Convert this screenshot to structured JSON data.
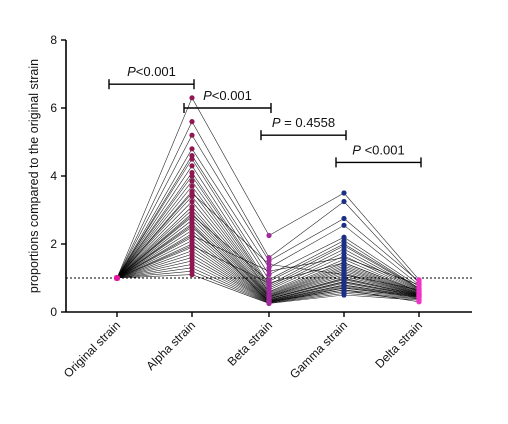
{
  "chart_data": {
    "type": "line",
    "title": "",
    "xlabel": "",
    "ylabel": "proportions compared to the original strain",
    "categories": [
      "Original strain",
      "Alpha strain",
      "Beta strain",
      "Gamma strain",
      "Delta strain"
    ],
    "ylim": [
      0,
      8
    ],
    "yticks": [
      "0",
      "2",
      "4",
      "6",
      "8"
    ],
    "grid": false,
    "legend": "none",
    "reference_line": {
      "y": 1,
      "style": "dotted"
    },
    "category_colors": [
      "#e0189b",
      "#8f1752",
      "#a02b9c",
      "#1c2f86",
      "#f233c9"
    ],
    "line_color": "#000000",
    "series": [
      {
        "values": [
          1,
          6.3,
          2.25,
          3.5,
          0.95
        ]
      },
      {
        "values": [
          1,
          5.6,
          1.6,
          3.25,
          0.85
        ]
      },
      {
        "values": [
          1,
          5.2,
          1.5,
          2.75,
          0.9
        ]
      },
      {
        "values": [
          1,
          4.8,
          1.3,
          2.55,
          0.8
        ]
      },
      {
        "values": [
          1,
          4.6,
          1.1,
          2.2,
          0.75
        ]
      },
      {
        "values": [
          1,
          4.5,
          0.95,
          2.1,
          0.7
        ]
      },
      {
        "values": [
          1,
          4.3,
          0.8,
          1.95,
          0.68
        ]
      },
      {
        "values": [
          1,
          4.1,
          0.75,
          1.85,
          0.66
        ]
      },
      {
        "values": [
          1,
          4.0,
          0.7,
          1.75,
          0.64
        ]
      },
      {
        "values": [
          1,
          3.85,
          0.65,
          1.65,
          0.62
        ]
      },
      {
        "values": [
          1,
          3.7,
          0.6,
          1.55,
          0.6
        ]
      },
      {
        "values": [
          1,
          3.55,
          0.58,
          1.45,
          0.6
        ]
      },
      {
        "values": [
          1,
          3.4,
          0.55,
          1.4,
          0.58
        ]
      },
      {
        "values": [
          1,
          3.25,
          0.52,
          1.35,
          0.56
        ]
      },
      {
        "values": [
          1,
          3.1,
          0.5,
          1.3,
          0.55
        ]
      },
      {
        "values": [
          1,
          3.0,
          0.48,
          1.25,
          0.54
        ]
      },
      {
        "values": [
          1,
          2.9,
          0.46,
          1.2,
          0.53
        ]
      },
      {
        "values": [
          1,
          2.8,
          0.45,
          1.15,
          0.52
        ]
      },
      {
        "values": [
          1,
          2.7,
          0.44,
          1.1,
          0.52
        ]
      },
      {
        "values": [
          1,
          2.6,
          0.42,
          1.05,
          0.51
        ]
      },
      {
        "values": [
          1,
          2.5,
          0.4,
          1.0,
          0.5
        ]
      },
      {
        "values": [
          1,
          2.4,
          0.39,
          0.98,
          0.5
        ]
      },
      {
        "values": [
          1,
          2.3,
          0.38,
          0.95,
          0.49
        ]
      },
      {
        "values": [
          1,
          2.2,
          0.36,
          0.9,
          0.48
        ]
      },
      {
        "values": [
          1,
          2.1,
          0.35,
          0.88,
          0.48
        ]
      },
      {
        "values": [
          1,
          2.0,
          0.34,
          0.85,
          0.47
        ]
      },
      {
        "values": [
          1,
          1.9,
          0.33,
          0.8,
          0.46
        ]
      },
      {
        "values": [
          1,
          1.8,
          0.32,
          0.78,
          0.46
        ]
      },
      {
        "values": [
          1,
          1.7,
          0.31,
          0.75,
          0.45
        ]
      },
      {
        "values": [
          1,
          1.6,
          0.3,
          0.72,
          0.44
        ]
      },
      {
        "values": [
          1,
          1.5,
          0.29,
          0.7,
          0.43
        ]
      },
      {
        "values": [
          1,
          1.4,
          0.28,
          0.65,
          0.42
        ]
      },
      {
        "values": [
          1,
          1.3,
          0.27,
          0.6,
          0.4
        ]
      },
      {
        "values": [
          1,
          1.2,
          0.26,
          0.55,
          0.38
        ]
      },
      {
        "values": [
          1,
          1.1,
          0.25,
          0.5,
          0.35
        ]
      },
      {
        "values": [
          1,
          2.25,
          1.2,
          1.6,
          0.8
        ]
      },
      {
        "values": [
          1,
          2.85,
          0.9,
          2.0,
          0.7
        ]
      },
      {
        "values": [
          1,
          3.5,
          1.4,
          1.1,
          0.65
        ]
      },
      {
        "values": [
          1,
          1.95,
          0.85,
          1.45,
          0.6
        ]
      },
      {
        "values": [
          1,
          2.55,
          0.3,
          0.65,
          0.3
        ]
      }
    ],
    "comparisons": [
      {
        "from": 0,
        "to": 1,
        "label": "P<0.001",
        "y": 6.7
      },
      {
        "from": 1,
        "to": 2,
        "label": "P<0.001",
        "y": 6.0
      },
      {
        "from": 2,
        "to": 3,
        "label": "P = 0.4558",
        "y": 5.2
      },
      {
        "from": 3,
        "to": 4,
        "label": "P <0.001",
        "y": 4.4
      }
    ]
  }
}
